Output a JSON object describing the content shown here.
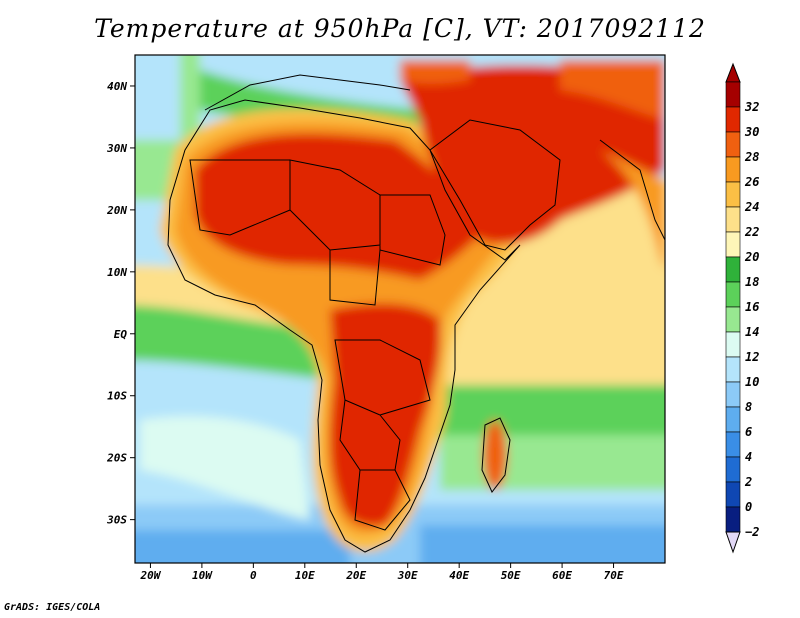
{
  "title": "Temperature at 950hPa [C], VT: 2017092112",
  "credit": "GrADS: IGES/COLA",
  "map": {
    "lon_range": [
      -23,
      80
    ],
    "lat_range": [
      -37,
      45
    ],
    "lon_ticks": [
      {
        "value": -20,
        "label": "20W"
      },
      {
        "value": -10,
        "label": "10W"
      },
      {
        "value": 0,
        "label": "0"
      },
      {
        "value": 10,
        "label": "10E"
      },
      {
        "value": 20,
        "label": "20E"
      },
      {
        "value": 30,
        "label": "30E"
      },
      {
        "value": 40,
        "label": "40E"
      },
      {
        "value": 50,
        "label": "50E"
      },
      {
        "value": 60,
        "label": "60E"
      },
      {
        "value": 70,
        "label": "70E"
      }
    ],
    "lat_ticks": [
      {
        "value": 40,
        "label": "40N"
      },
      {
        "value": 30,
        "label": "30N"
      },
      {
        "value": 20,
        "label": "20N"
      },
      {
        "value": 10,
        "label": "10N"
      },
      {
        "value": 0,
        "label": "EQ"
      },
      {
        "value": -10,
        "label": "10S"
      },
      {
        "value": -20,
        "label": "20S"
      },
      {
        "value": -30,
        "label": "30S"
      }
    ]
  },
  "colorbar": {
    "levels": [
      {
        "label": "32",
        "color": "#a50000"
      },
      {
        "label": "30",
        "color": "#e02800"
      },
      {
        "label": "28",
        "color": "#f06010"
      },
      {
        "label": "26",
        "color": "#f89a20"
      },
      {
        "label": "24",
        "color": "#fbbf45"
      },
      {
        "label": "22",
        "color": "#fde08a"
      },
      {
        "label": "20",
        "color": "#fef6b8"
      },
      {
        "label": "18",
        "color": "#2fb23a"
      },
      {
        "label": "16",
        "color": "#5cd15a"
      },
      {
        "label": "14",
        "color": "#98e891"
      },
      {
        "label": "12",
        "color": "#dcfbf2"
      },
      {
        "label": "10",
        "color": "#b4e4fb"
      },
      {
        "label": "8",
        "color": "#8ccaf7"
      },
      {
        "label": "6",
        "color": "#5eadef"
      },
      {
        "label": "4",
        "color": "#3a8ee6"
      },
      {
        "label": "2",
        "color": "#1f6cd3"
      },
      {
        "label": "0",
        "color": "#0f47b3"
      },
      {
        "label": "−2",
        "color": "#081e80"
      }
    ],
    "bottom_arrow_color": "#e2d8f6"
  }
}
